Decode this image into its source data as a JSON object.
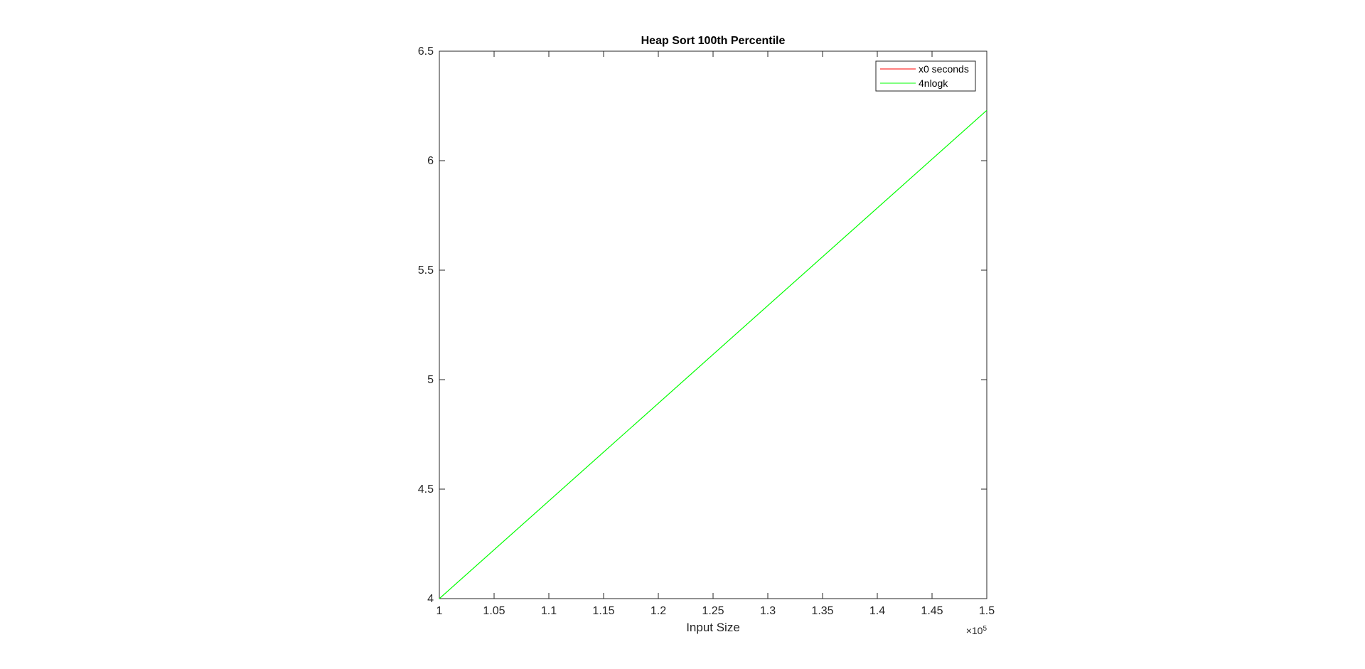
{
  "chart_data": {
    "type": "line",
    "title": "Heap Sort 100th Percentile",
    "xlabel": "Input Size",
    "ylabel": "",
    "x_exponent_label": {
      "base": "×10",
      "exponent": "5"
    },
    "xlim": [
      1.0,
      1.5
    ],
    "ylim": [
      4.0,
      6.5
    ],
    "x_ticks": [
      1.0,
      1.05,
      1.1,
      1.15,
      1.2,
      1.25,
      1.3,
      1.35,
      1.4,
      1.45,
      1.5
    ],
    "x_tick_labels": [
      "1",
      "1.05",
      "1.1",
      "1.15",
      "1.2",
      "1.25",
      "1.3",
      "1.35",
      "1.4",
      "1.45",
      "1.5"
    ],
    "y_ticks": [
      4.0,
      4.5,
      5.0,
      5.5,
      6.0,
      6.5
    ],
    "y_tick_labels": [
      "4",
      "4.5",
      "5",
      "5.5",
      "6",
      "6.5"
    ],
    "grid": false,
    "legend_position": "top-right",
    "series": [
      {
        "name": "x0 seconds",
        "color": "#ff0000",
        "x": [],
        "y": []
      },
      {
        "name": "4nlogk",
        "color": "#00ff00",
        "x": [
          1.0,
          1.5
        ],
        "y": [
          4.0,
          6.23
        ]
      }
    ]
  }
}
